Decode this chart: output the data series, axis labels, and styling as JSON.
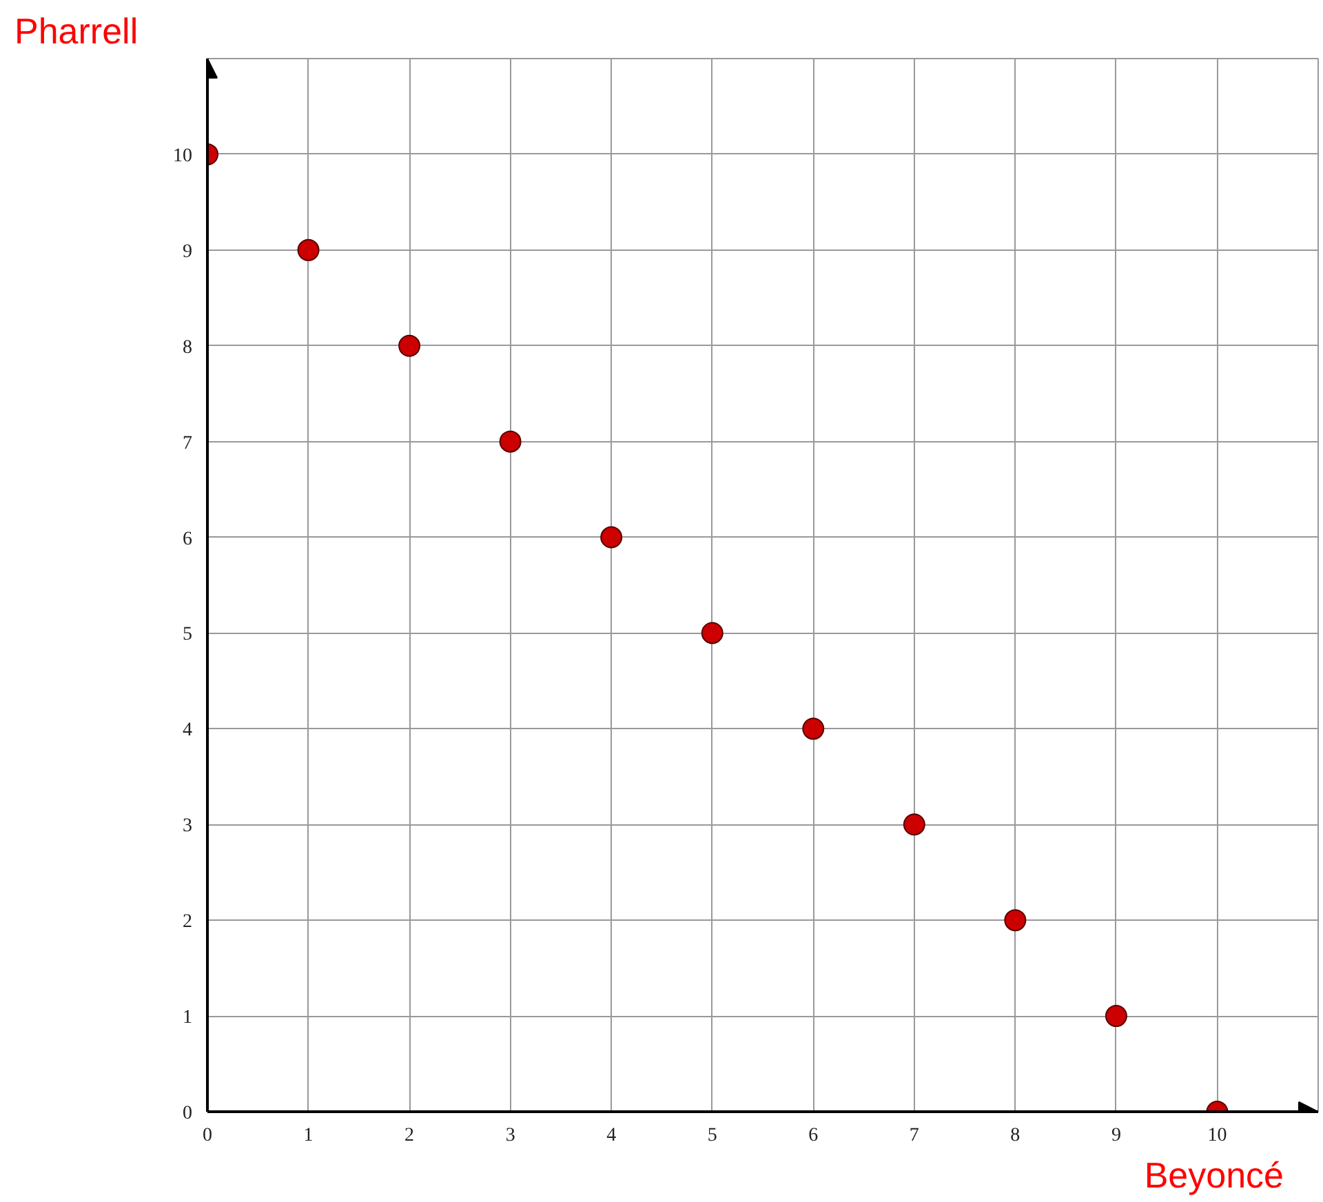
{
  "chart_data": {
    "type": "scatter",
    "xlabel": "Beyoncé",
    "ylabel": "Pharrell",
    "x": [
      0,
      1,
      2,
      3,
      4,
      5,
      6,
      7,
      8,
      9,
      10
    ],
    "values": [
      10,
      9,
      8,
      7,
      6,
      5,
      4,
      3,
      2,
      1,
      0
    ],
    "color": "#cc0000",
    "marker": "circle",
    "xlim": [
      0,
      11
    ],
    "ylim": [
      0,
      11
    ],
    "xticks": [
      0,
      1,
      2,
      3,
      4,
      5,
      6,
      7,
      8,
      9,
      10
    ],
    "yticks": [
      0,
      1,
      2,
      3,
      4,
      5,
      6,
      7,
      8,
      9,
      10
    ],
    "grid": true
  }
}
